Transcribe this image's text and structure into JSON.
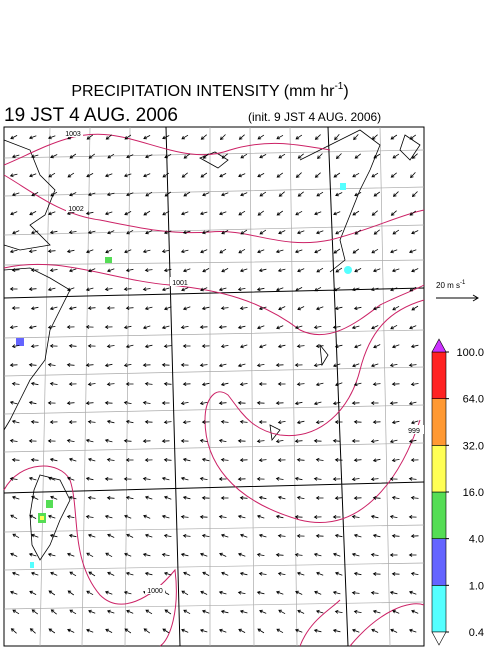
{
  "header": {
    "title_main": "PRECIPITATION INTENSITY (mm hr",
    "title_exp": "-1",
    "title_close": ")",
    "valid_time": "19 JST 4 AUG. 2006",
    "init_time": "(init. 9 JST 4 AUG. 2006)"
  },
  "reference_vector": {
    "label_main": "20 m s",
    "label_exp": "-1"
  },
  "isobars": [
    1003,
    1002,
    1001,
    999,
    1000
  ],
  "colorbar": {
    "levels": [
      0.4,
      {
        "value": 1.0,
        "label": "1.0"
      },
      {
        "value": 4.0,
        "label": "4.0"
      },
      {
        "value": 16.0,
        "label": "16.0"
      },
      {
        "value": 32.0,
        "label": "32.0"
      },
      {
        "value": 64.0,
        "label": "64.0"
      },
      {
        "value": 100.0,
        "label": "100.0"
      }
    ],
    "colors": [
      "#ffffff",
      "#55ffff",
      "#6464ff",
      "#55dd55",
      "#ffff55",
      "#ff9933",
      "#ff2222",
      "#cc33ff"
    ]
  }
}
